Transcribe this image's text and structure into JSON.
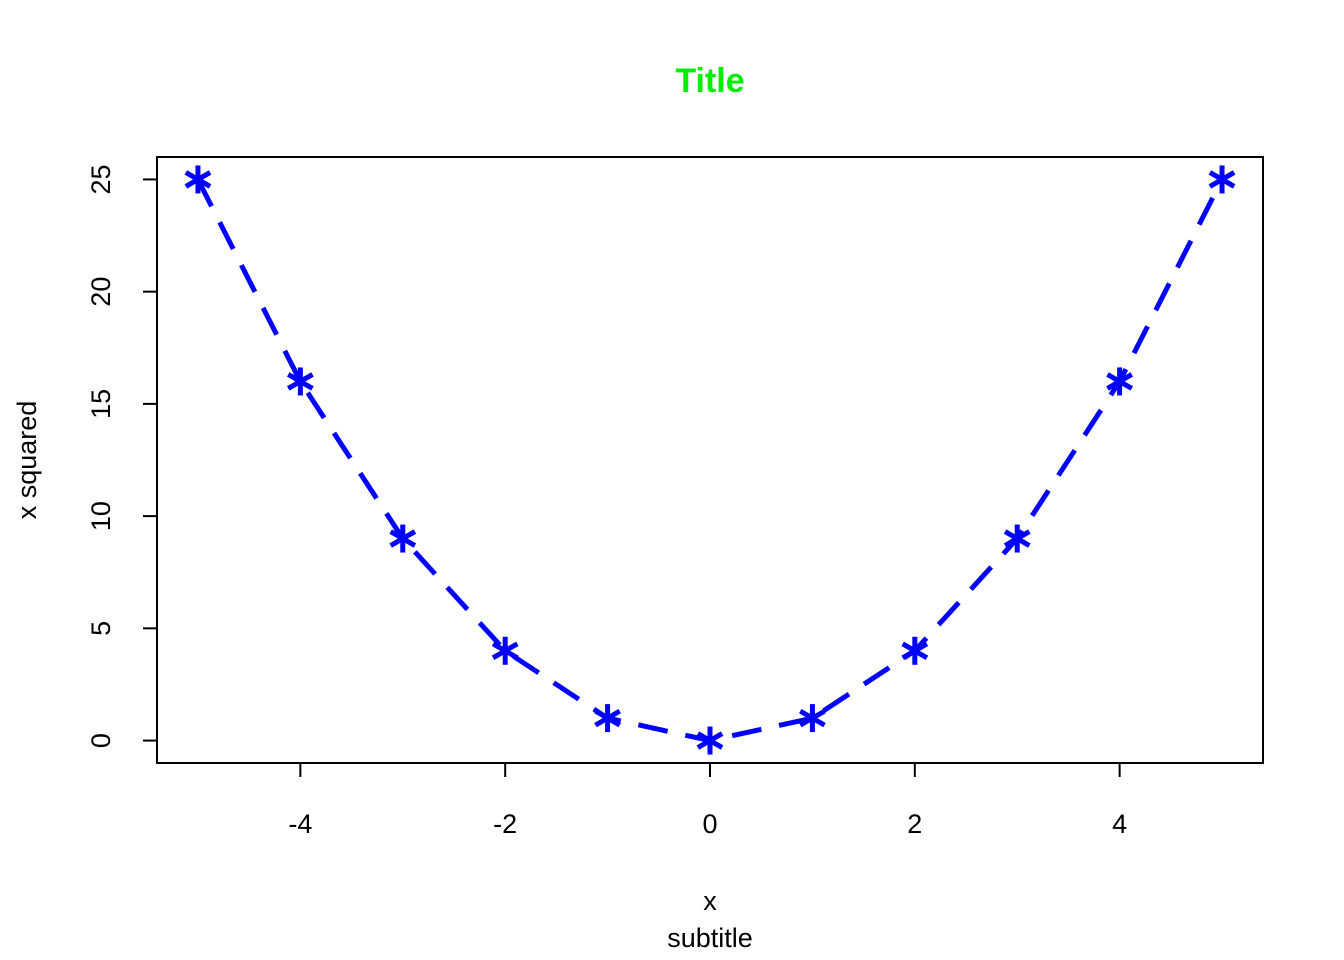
{
  "chart_data": {
    "type": "line",
    "title": "Title",
    "subtitle": "subtitle",
    "xlabel": "x",
    "ylabel": "x squared",
    "x_ticks": [
      -4,
      -2,
      0,
      2,
      4
    ],
    "y_ticks": [
      0,
      5,
      10,
      15,
      20,
      25
    ],
    "xlim": [
      -5.4,
      5.4
    ],
    "ylim": [
      -1,
      26
    ],
    "grid": false,
    "marker": "*",
    "line_style": "dashed",
    "series": [
      {
        "x": [
          -5,
          -4,
          -3,
          -2,
          -1,
          0,
          1,
          2,
          3,
          4,
          5
        ],
        "y": [
          25,
          16,
          9,
          4,
          1,
          0,
          1,
          4,
          9,
          16,
          25
        ]
      }
    ],
    "colors": {
      "title": "#00ee00",
      "series": "#0000ff",
      "axis": "#000000"
    }
  }
}
